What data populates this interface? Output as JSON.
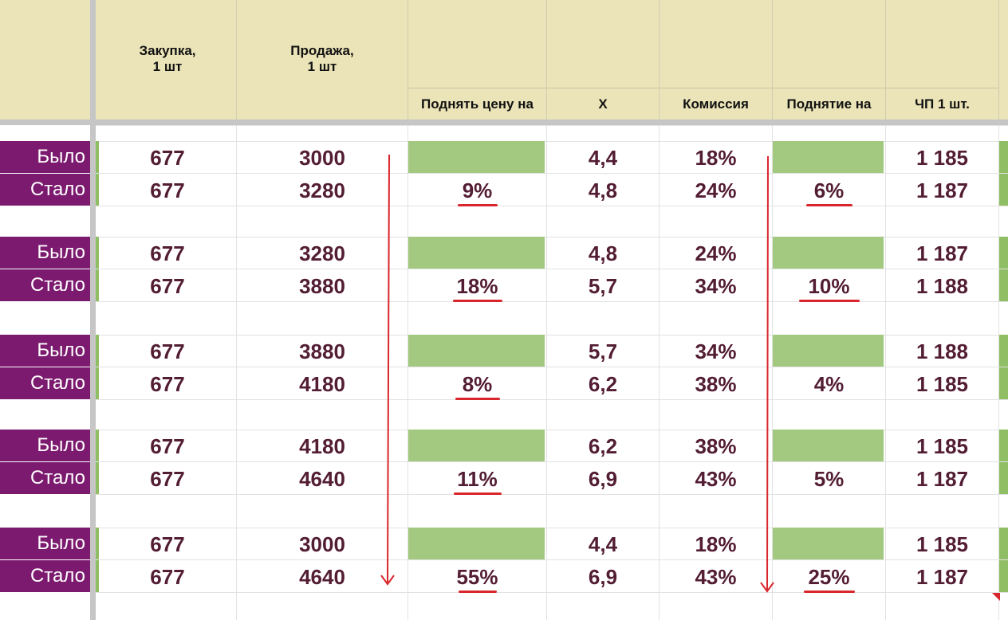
{
  "header": {
    "purchase": "Закупка,\n1 шт",
    "sale": "Продажа,\n1 шт",
    "raise_price": "Поднять цену на",
    "x": "X",
    "commission": "Комиссия",
    "raise_by": "Поднятие на",
    "net_profit": "ЧП 1 шт."
  },
  "groups": [
    {
      "rows": [
        {
          "label": "Было",
          "purchase": "677",
          "sale": "3000",
          "raise": "",
          "x": "4,4",
          "commission": "18%",
          "raise2": "",
          "profit": "1 185"
        },
        {
          "label": "Стало",
          "purchase": "677",
          "sale": "3280",
          "raise": "9%",
          "x": "4,8",
          "commission": "24%",
          "raise2": "6%",
          "profit": "1 187"
        }
      ]
    },
    {
      "rows": [
        {
          "label": "Было",
          "purchase": "677",
          "sale": "3280",
          "raise": "",
          "x": "4,8",
          "commission": "24%",
          "raise2": "",
          "profit": "1 187"
        },
        {
          "label": "Стало",
          "purchase": "677",
          "sale": "3880",
          "raise": "18%",
          "x": "5,7",
          "commission": "34%",
          "raise2": "10%",
          "profit": "1 188"
        }
      ]
    },
    {
      "rows": [
        {
          "label": "Было",
          "purchase": "677",
          "sale": "3880",
          "raise": "",
          "x": "5,7",
          "commission": "34%",
          "raise2": "",
          "profit": "1 188"
        },
        {
          "label": "Стало",
          "purchase": "677",
          "sale": "4180",
          "raise": "8%",
          "x": "6,2",
          "commission": "38%",
          "raise2": "4%",
          "profit": "1 185"
        }
      ]
    },
    {
      "rows": [
        {
          "label": "Было",
          "purchase": "677",
          "sale": "4180",
          "raise": "",
          "x": "6,2",
          "commission": "38%",
          "raise2": "",
          "profit": "1 185"
        },
        {
          "label": "Стало",
          "purchase": "677",
          "sale": "4640",
          "raise": "11%",
          "x": "6,9",
          "commission": "43%",
          "raise2": "5%",
          "profit": "1 187"
        }
      ]
    },
    {
      "rows": [
        {
          "label": "Было",
          "purchase": "677",
          "sale": "3000",
          "raise": "",
          "x": "4,4",
          "commission": "18%",
          "raise2": "",
          "profit": "1 185"
        },
        {
          "label": "Стало",
          "purchase": "677",
          "sale": "4640",
          "raise": "55%",
          "x": "6,9",
          "commission": "43%",
          "raise2": "25%",
          "profit": "1 187"
        }
      ]
    }
  ],
  "colors": {
    "header_bg": "#ebe4b8",
    "label_bg": "#7b1a6e",
    "highlight_green": "#a2c97f",
    "value_text": "#531d33",
    "annotation_red": "#d9262c"
  }
}
